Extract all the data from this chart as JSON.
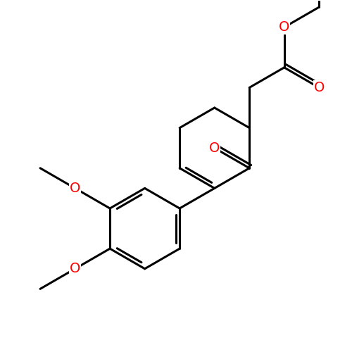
{
  "background_color": "#ffffff",
  "bond_color": "#000000",
  "bond_width": 2.2,
  "atom_color_O": "#ff0000",
  "figsize": [
    5.0,
    5.0
  ],
  "dpi": 100,
  "xlim": [
    0,
    10
  ],
  "ylim": [
    0,
    10
  ]
}
